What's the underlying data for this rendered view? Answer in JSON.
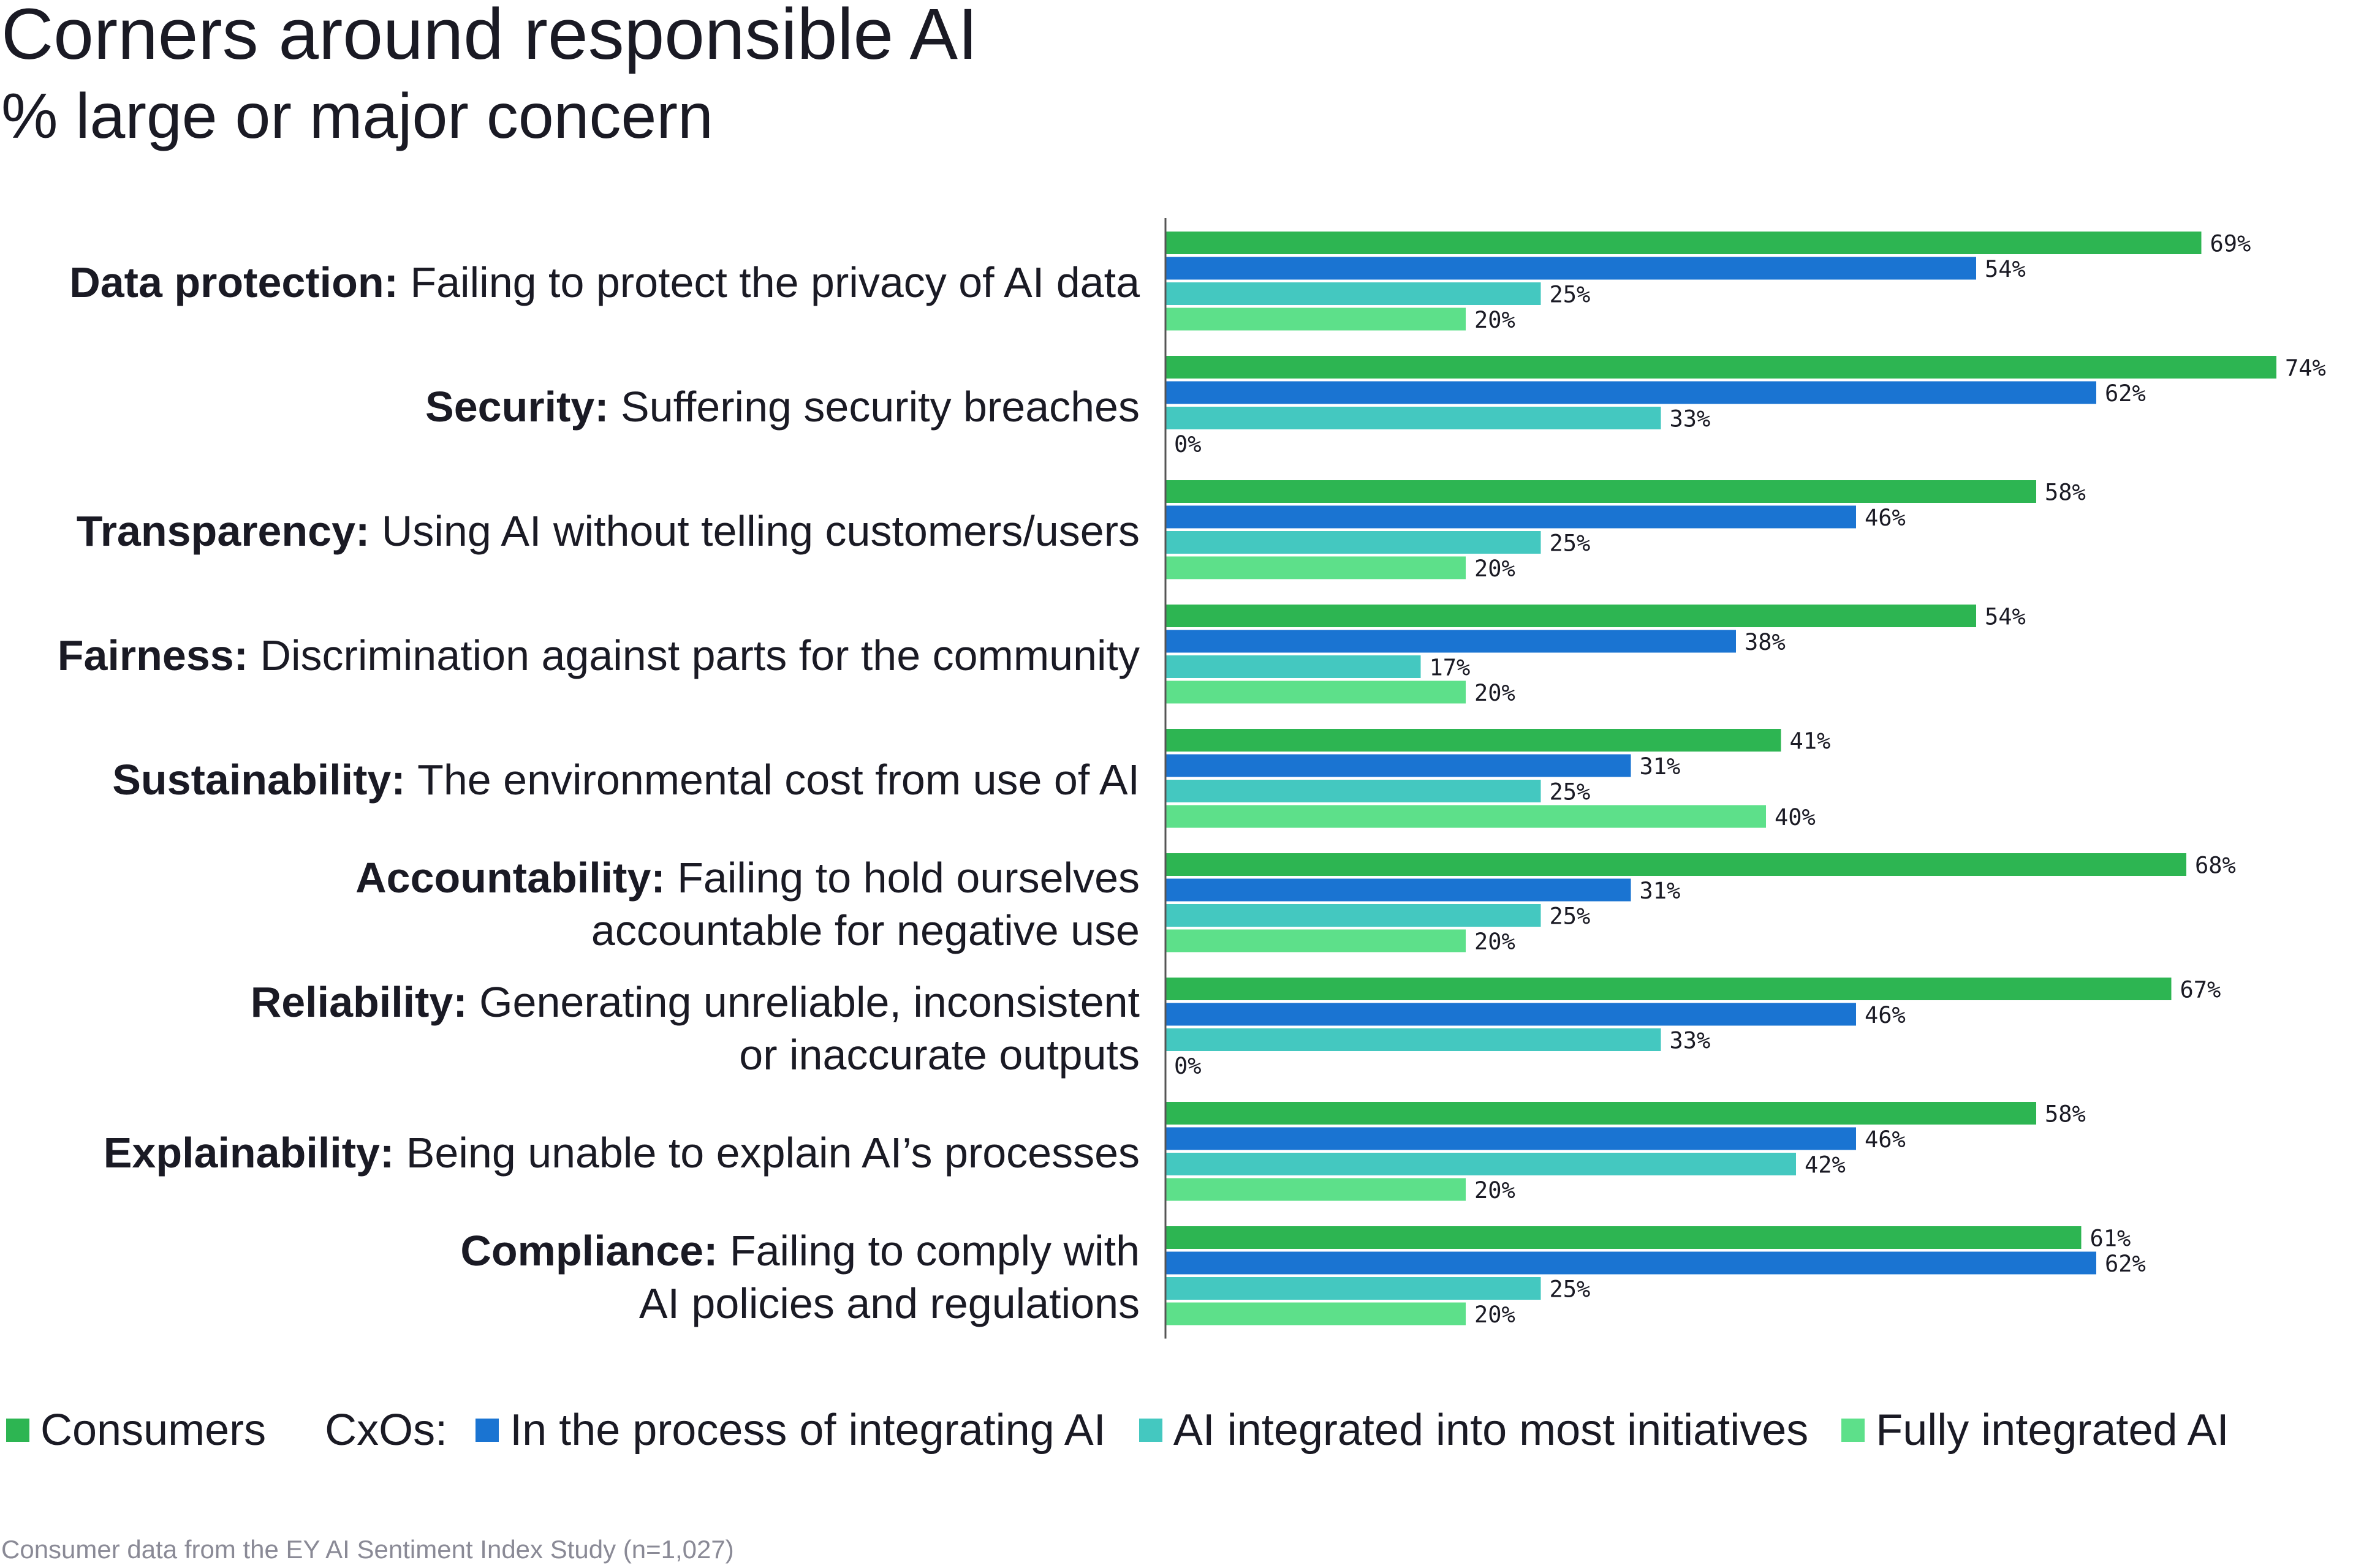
{
  "chart_data": {
    "type": "bar",
    "orientation": "horizontal",
    "title": "Corners around responsible AI",
    "subtitle": "% large or major concern",
    "value_suffix": "%",
    "xlim": [
      0,
      74
    ],
    "categories": [
      {
        "bold": "Data protection:",
        "rest": [
          "Failing to protect the privacy of AI data"
        ]
      },
      {
        "bold": "Security:",
        "rest": [
          "Suffering security breaches"
        ]
      },
      {
        "bold": "Transparency:",
        "rest": [
          "Using AI without telling customers/users"
        ]
      },
      {
        "bold": "Fairness:",
        "rest": [
          "Discrimination against parts for the community"
        ]
      },
      {
        "bold": "Sustainability:",
        "rest": [
          "The environmental cost from use of AI"
        ]
      },
      {
        "bold": "Accountability:",
        "rest": [
          "Failing to hold ourselves",
          "accountable for negative use"
        ]
      },
      {
        "bold": "Reliability:",
        "rest": [
          "Generating unreliable, inconsistent",
          "or inaccurate outputs"
        ]
      },
      {
        "bold": "Explainability:",
        "rest": [
          "Being unable to explain AI’s processes"
        ]
      },
      {
        "bold": "Compliance:",
        "rest": [
          "Failing to comply with",
          "AI policies and regulations"
        ]
      }
    ],
    "series": [
      {
        "name": "Consumers",
        "color": "#2db552",
        "values": [
          69,
          74,
          58,
          54,
          41,
          68,
          67,
          58,
          61
        ]
      },
      {
        "name": "In the process of integrating AI",
        "color": "#1a74d2",
        "values": [
          54,
          62,
          46,
          38,
          31,
          31,
          46,
          46,
          62
        ]
      },
      {
        "name": "AI integrated into most initiatives",
        "color": "#44c8c0",
        "values": [
          25,
          33,
          25,
          17,
          25,
          25,
          33,
          42,
          25
        ]
      },
      {
        "name": "Fully integrated AI",
        "color": "#5de08a",
        "values": [
          20,
          0,
          20,
          20,
          40,
          20,
          0,
          20,
          20
        ]
      }
    ]
  },
  "legend": {
    "consumers": "Consumers",
    "cxos_label": "CxOs:",
    "process": "In the process of integrating AI",
    "most": "AI integrated into most initiatives",
    "fully": "Fully integrated AI"
  },
  "footnote": "Consumer data from the EY AI Sentiment Index Study (n=1,027)",
  "colors": {
    "consumers": "#2db552",
    "process": "#1a74d2",
    "most": "#44c8c0",
    "fully": "#5de08a",
    "axis": "#555555"
  }
}
